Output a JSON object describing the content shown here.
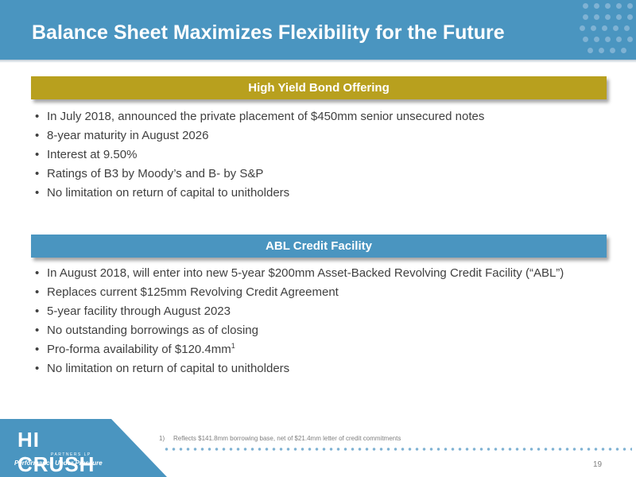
{
  "slide": {
    "title": "Balance Sheet Maximizes Flexibility for the Future",
    "page_number": "19"
  },
  "sections": [
    {
      "header": "High Yield Bond Offering",
      "bullets": [
        "In July 2018, announced the private placement of $450mm senior unsecured notes",
        "8-year maturity in August 2026",
        "Interest at 9.50%",
        "Ratings of B3 by Moody’s and B- by S&P",
        "No limitation on return of capital to unitholders"
      ]
    },
    {
      "header": "ABL Credit Facility",
      "bullets": [
        "In August 2018, will enter into new 5-year $200mm Asset-Backed Revolving Credit Facility (“ABL”)",
        "Replaces current $125mm Revolving Credit Agreement",
        "5-year facility through August 2023",
        "No outstanding borrowings as of closing",
        "Pro-forma availability of $120.4mm",
        "No limitation on return of capital to unitholders"
      ],
      "footnote_marker": "1"
    }
  ],
  "footnote": {
    "number": "1)",
    "text": "Reflects $141.8mm borrowing base, net of $21.4mm letter of credit commitments"
  },
  "logo": {
    "name": "HI CRUSH",
    "sub": "PARTNERS LP",
    "tagline": "Performance Under Pressure"
  },
  "bullet_glyph": "•",
  "colors": {
    "title_bar": "#4a95c0",
    "gold_header": "#b8a01e",
    "blue_header": "#4a95c0",
    "body_text": "#404040"
  }
}
